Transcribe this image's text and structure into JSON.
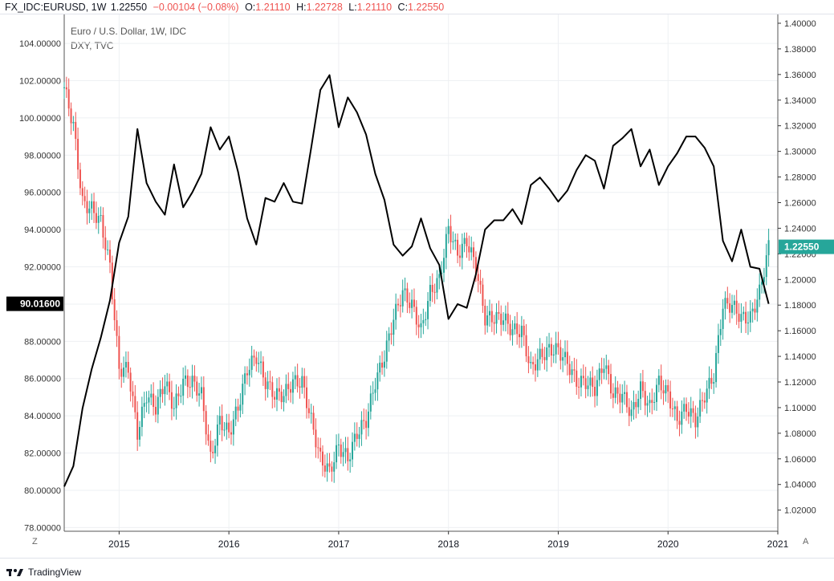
{
  "header": {
    "symbol": "FX_IDC:EURUSD, 1W",
    "last": "1.22550",
    "change": "−0.00104 (−0.08%)",
    "o_label": "O:",
    "o_value": "1.21110",
    "h_label": "H:",
    "h_value": "1.22728",
    "l_label": "L:",
    "l_value": "1.21110",
    "c_label": "C:",
    "c_value": "1.22550"
  },
  "series_labels": {
    "main": "Euro / U.S. Dollar, 1W, IDC",
    "overlay": "DXY, TVC"
  },
  "colors": {
    "up": "#26a69a",
    "down": "#ef5350",
    "dxy_line": "#000000",
    "last_badge": "#26a69a",
    "dxy_badge": "#000000"
  },
  "price_badges": {
    "eurusd": "1.22550",
    "dxy": "90.01600"
  },
  "axis_buttons": {
    "left": "Z",
    "right": "A"
  },
  "brand": "TradingView",
  "chart_data": {
    "type": "line",
    "xlabel": "",
    "x_ticks": [
      "2015",
      "2016",
      "2017",
      "2018",
      "2019",
      "2020",
      "2021"
    ],
    "xlim": [
      "2014-07",
      "2021-01"
    ],
    "left_axis": {
      "series": "DXY, TVC",
      "ylim": [
        77.8,
        105.6
      ],
      "ticks": [
        "78.00000",
        "80.00000",
        "82.00000",
        "84.00000",
        "86.00000",
        "88.00000",
        "90.00000",
        "92.00000",
        "94.00000",
        "96.00000",
        "98.00000",
        "100.00000",
        "102.00000",
        "104.00000"
      ]
    },
    "right_axis": {
      "series": "Euro / U.S. Dollar, 1W, IDC",
      "ylim": [
        1.0035,
        1.4075
      ],
      "ticks": [
        "1.02000",
        "1.04000",
        "1.06000",
        "1.08000",
        "1.10000",
        "1.12000",
        "1.14000",
        "1.16000",
        "1.18000",
        "1.20000",
        "1.22000",
        "1.24000",
        "1.26000",
        "1.28000",
        "1.30000",
        "1.32000",
        "1.34000",
        "1.36000",
        "1.38000",
        "1.40000"
      ]
    },
    "grid": true,
    "series": [
      {
        "name": "DXY, TVC",
        "style": "line",
        "axis": "left",
        "points": [
          [
            "2014-07",
            80.2
          ],
          [
            "2014-08",
            81.3
          ],
          [
            "2014-09",
            84.4
          ],
          [
            "2014-10",
            86.5
          ],
          [
            "2014-11",
            88.2
          ],
          [
            "2014-12",
            90.2
          ],
          [
            "2015-01",
            93.3
          ],
          [
            "2015-02",
            94.7
          ],
          [
            "2015-03",
            99.4
          ],
          [
            "2015-04",
            96.5
          ],
          [
            "2015-05",
            95.5
          ],
          [
            "2015-06",
            94.8
          ],
          [
            "2015-07",
            97.5
          ],
          [
            "2015-08",
            95.2
          ],
          [
            "2015-09",
            96.0
          ],
          [
            "2015-10",
            97.0
          ],
          [
            "2015-11",
            99.5
          ],
          [
            "2015-12",
            98.3
          ],
          [
            "2016-01",
            99.0
          ],
          [
            "2016-02",
            97.1
          ],
          [
            "2016-03",
            94.6
          ],
          [
            "2016-04",
            93.2
          ],
          [
            "2016-05",
            95.7
          ],
          [
            "2016-06",
            95.5
          ],
          [
            "2016-07",
            96.5
          ],
          [
            "2016-08",
            95.5
          ],
          [
            "2016-09",
            95.4
          ],
          [
            "2016-10",
            98.4
          ],
          [
            "2016-11",
            101.5
          ],
          [
            "2016-12",
            102.3
          ],
          [
            "2017-01",
            99.5
          ],
          [
            "2017-02",
            101.1
          ],
          [
            "2017-03",
            100.3
          ],
          [
            "2017-04",
            99.1
          ],
          [
            "2017-05",
            97.0
          ],
          [
            "2017-06",
            95.6
          ],
          [
            "2017-07",
            93.2
          ],
          [
            "2017-08",
            92.6
          ],
          [
            "2017-09",
            93.1
          ],
          [
            "2017-10",
            94.6
          ],
          [
            "2017-11",
            93.0
          ],
          [
            "2017-12",
            92.1
          ],
          [
            "2018-01",
            89.2
          ],
          [
            "2018-02",
            90.0
          ],
          [
            "2018-03",
            89.8
          ],
          [
            "2018-04",
            91.6
          ],
          [
            "2018-05",
            94.0
          ],
          [
            "2018-06",
            94.5
          ],
          [
            "2018-07",
            94.5
          ],
          [
            "2018-08",
            95.1
          ],
          [
            "2018-09",
            94.3
          ],
          [
            "2018-10",
            96.4
          ],
          [
            "2018-11",
            96.8
          ],
          [
            "2018-12",
            96.2
          ],
          [
            "2019-01",
            95.5
          ],
          [
            "2019-02",
            96.1
          ],
          [
            "2019-03",
            97.2
          ],
          [
            "2019-04",
            98.0
          ],
          [
            "2019-05",
            97.7
          ],
          [
            "2019-06",
            96.2
          ],
          [
            "2019-07",
            98.5
          ],
          [
            "2019-08",
            98.9
          ],
          [
            "2019-09",
            99.4
          ],
          [
            "2019-10",
            97.4
          ],
          [
            "2019-11",
            98.3
          ],
          [
            "2019-12",
            96.4
          ],
          [
            "2020-01",
            97.4
          ],
          [
            "2020-02",
            98.1
          ],
          [
            "2020-03",
            99.0
          ],
          [
            "2020-04",
            99.0
          ],
          [
            "2020-05",
            98.4
          ],
          [
            "2020-06",
            97.4
          ],
          [
            "2020-07",
            93.4
          ],
          [
            "2020-08",
            92.3
          ],
          [
            "2020-09",
            94.0
          ],
          [
            "2020-10",
            92.0
          ],
          [
            "2020-11",
            91.9
          ],
          [
            "2020-12",
            90.016
          ]
        ]
      },
      {
        "name": "Euro / U.S. Dollar, 1W, IDC",
        "style": "candles",
        "axis": "right",
        "points": [
          [
            "2014-07",
            1.35
          ],
          [
            "2014-08",
            1.32
          ],
          [
            "2014-09",
            1.26
          ],
          [
            "2014-10",
            1.255
          ],
          [
            "2014-11",
            1.245
          ],
          [
            "2014-12",
            1.21
          ],
          [
            "2015-01",
            1.13
          ],
          [
            "2015-02",
            1.13
          ],
          [
            "2015-03",
            1.08
          ],
          [
            "2015-04",
            1.11
          ],
          [
            "2015-05",
            1.1
          ],
          [
            "2015-06",
            1.12
          ],
          [
            "2015-07",
            1.1
          ],
          [
            "2015-08",
            1.12
          ],
          [
            "2015-09",
            1.12
          ],
          [
            "2015-10",
            1.11
          ],
          [
            "2015-11",
            1.06
          ],
          [
            "2015-12",
            1.09
          ],
          [
            "2016-01",
            1.08
          ],
          [
            "2016-02",
            1.1
          ],
          [
            "2016-03",
            1.13
          ],
          [
            "2016-04",
            1.14
          ],
          [
            "2016-05",
            1.12
          ],
          [
            "2016-06",
            1.11
          ],
          [
            "2016-07",
            1.11
          ],
          [
            "2016-08",
            1.12
          ],
          [
            "2016-09",
            1.12
          ],
          [
            "2016-10",
            1.09
          ],
          [
            "2016-11",
            1.06
          ],
          [
            "2016-12",
            1.05
          ],
          [
            "2017-01",
            1.07
          ],
          [
            "2017-02",
            1.06
          ],
          [
            "2017-03",
            1.08
          ],
          [
            "2017-04",
            1.09
          ],
          [
            "2017-05",
            1.12
          ],
          [
            "2017-06",
            1.14
          ],
          [
            "2017-07",
            1.17
          ],
          [
            "2017-08",
            1.19
          ],
          [
            "2017-09",
            1.18
          ],
          [
            "2017-10",
            1.16
          ],
          [
            "2017-11",
            1.19
          ],
          [
            "2017-12",
            1.2
          ],
          [
            "2018-01",
            1.24
          ],
          [
            "2018-02",
            1.22
          ],
          [
            "2018-03",
            1.23
          ],
          [
            "2018-04",
            1.21
          ],
          [
            "2018-05",
            1.17
          ],
          [
            "2018-06",
            1.17
          ],
          [
            "2018-07",
            1.17
          ],
          [
            "2018-08",
            1.16
          ],
          [
            "2018-09",
            1.16
          ],
          [
            "2018-10",
            1.13
          ],
          [
            "2018-11",
            1.14
          ],
          [
            "2018-12",
            1.145
          ],
          [
            "2019-01",
            1.145
          ],
          [
            "2019-02",
            1.135
          ],
          [
            "2019-03",
            1.12
          ],
          [
            "2019-04",
            1.12
          ],
          [
            "2019-05",
            1.115
          ],
          [
            "2019-06",
            1.135
          ],
          [
            "2019-07",
            1.11
          ],
          [
            "2019-08",
            1.11
          ],
          [
            "2019-09",
            1.095
          ],
          [
            "2019-10",
            1.115
          ],
          [
            "2019-11",
            1.1
          ],
          [
            "2019-12",
            1.12
          ],
          [
            "2020-01",
            1.11
          ],
          [
            "2020-02",
            1.09
          ],
          [
            "2020-03",
            1.1
          ],
          [
            "2020-04",
            1.09
          ],
          [
            "2020-05",
            1.11
          ],
          [
            "2020-06",
            1.125
          ],
          [
            "2020-07",
            1.18
          ],
          [
            "2020-08",
            1.18
          ],
          [
            "2020-09",
            1.17
          ],
          [
            "2020-10",
            1.17
          ],
          [
            "2020-11",
            1.19
          ],
          [
            "2020-12",
            1.2255
          ]
        ]
      }
    ]
  }
}
